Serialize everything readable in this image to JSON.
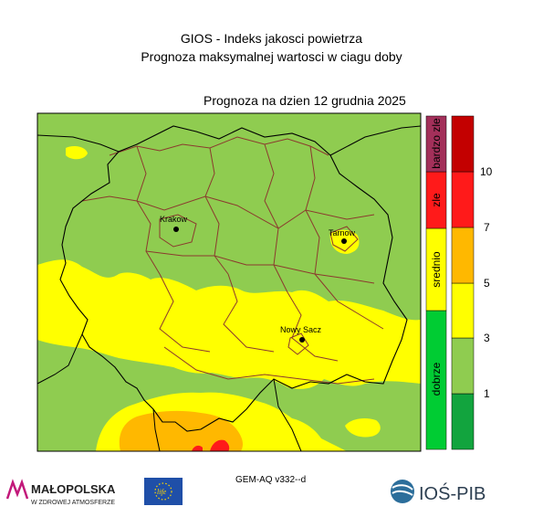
{
  "header": {
    "title_line1": "GIOS - Indeks jakosci powietrza",
    "title_line2": "Prognoza maksymalnej wartosci w ciagu doby",
    "forecast_date": "Prognoza na dzien  12 grudnia 2025"
  },
  "map": {
    "cities": [
      {
        "name": "Krakow"
      },
      {
        "name": "Tarnow"
      },
      {
        "name": "Nowy Sacz"
      }
    ]
  },
  "legend": {
    "categories": [
      {
        "label": "dobrze",
        "color": "#00cc33"
      },
      {
        "label": "srednio",
        "color": "#ffff00"
      },
      {
        "label": "zle",
        "color": "#ff1a1a"
      },
      {
        "label": "bardzo zle",
        "color": "#a3305a"
      }
    ],
    "scale_ticks": [
      "1",
      "3",
      "5",
      "7",
      "10"
    ],
    "scale_colors": [
      "#12a43e",
      "#8fcc50",
      "#ffff00",
      "#ffb800",
      "#ff1a1a",
      "#c30000"
    ]
  },
  "footer": {
    "model_version": "GEM-AQ v332--d",
    "logo_malopolska_name": "MAŁOPOLSKA",
    "logo_malopolska_sub": "W ZDROWEJ ATMOSFERZE",
    "logo_eu_text": "life",
    "logo_ios_text": "IOŚ-PIB"
  }
}
